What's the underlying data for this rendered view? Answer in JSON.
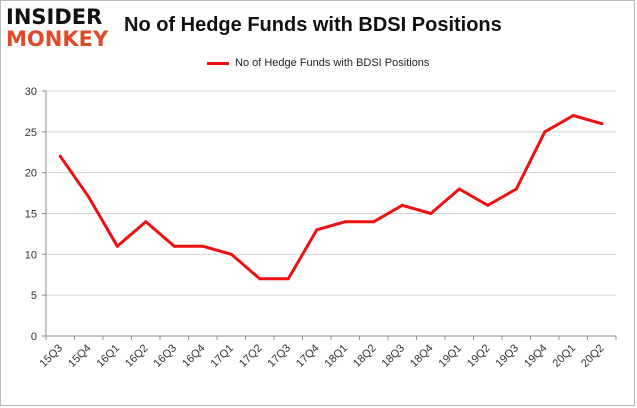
{
  "brand": {
    "line1": "INSIDER",
    "line2": "MONKEY"
  },
  "colors": {
    "series": "#ee1111",
    "grid": "#d4d4d4",
    "axis": "#8c8c8c",
    "brand_accent": "#e04a2a"
  },
  "chart_data": {
    "type": "line",
    "title": "No of Hedge Funds with BDSI Positions",
    "xlabel": "",
    "ylabel": "",
    "x": [
      "15Q3",
      "15Q4",
      "16Q1",
      "16Q2",
      "16Q3",
      "16Q4",
      "17Q1",
      "17Q2",
      "17Q3",
      "17Q4",
      "18Q1",
      "18Q2",
      "18Q3",
      "18Q4",
      "19Q1",
      "19Q2",
      "19Q3",
      "19Q4",
      "20Q1",
      "20Q2"
    ],
    "series": [
      {
        "name": "No of Hedge Funds with BDSI Positions",
        "values": [
          22,
          17,
          11,
          14,
          11,
          11,
          10,
          7,
          7,
          13,
          14,
          14,
          16,
          15,
          18,
          16,
          18,
          25,
          27,
          26
        ]
      }
    ],
    "ylim": [
      0,
      30
    ],
    "yticks": [
      0,
      5,
      10,
      15,
      20,
      25,
      30
    ],
    "grid": true,
    "legend_position": "top-center"
  }
}
